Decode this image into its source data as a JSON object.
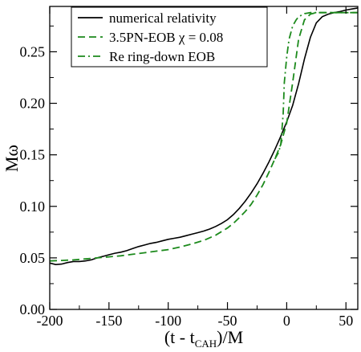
{
  "chart_data": {
    "type": "line",
    "xlabel": "(t - t_CAH)/M",
    "ylabel": "Mω",
    "xlim": [
      -200,
      60
    ],
    "ylim": [
      0,
      0.294
    ],
    "x_ticks": [
      -200,
      -150,
      -100,
      -50,
      0,
      50
    ],
    "x_tick_labels": [
      "-200",
      "-150",
      "-100",
      "-50",
      "0",
      "50"
    ],
    "y_ticks": [
      0,
      0.05,
      0.1,
      0.15,
      0.2,
      0.25
    ],
    "y_tick_labels": [
      "0.00",
      "0.05",
      "0.10",
      "0.15",
      "0.20",
      "0.25"
    ],
    "grid": false,
    "legend_position": "top-left",
    "series": [
      {
        "name": "numerical relativity",
        "color": "#000000",
        "dash": "solid",
        "x": [
          -200,
          -195,
          -190,
          -185,
          -180,
          -175,
          -170,
          -165,
          -160,
          -155,
          -150,
          -145,
          -140,
          -135,
          -130,
          -125,
          -120,
          -115,
          -110,
          -105,
          -100,
          -95,
          -90,
          -85,
          -80,
          -75,
          -70,
          -65,
          -60,
          -55,
          -50,
          -45,
          -40,
          -35,
          -30,
          -25,
          -20,
          -15,
          -10,
          -5,
          0,
          5,
          10,
          15,
          20,
          25,
          30,
          35,
          40,
          45,
          50,
          55,
          60
        ],
        "y": [
          0.045,
          0.0435,
          0.044,
          0.0455,
          0.0465,
          0.0465,
          0.047,
          0.048,
          0.05,
          0.0515,
          0.053,
          0.0545,
          0.0555,
          0.057,
          0.059,
          0.061,
          0.0625,
          0.064,
          0.065,
          0.0665,
          0.068,
          0.069,
          0.07,
          0.0715,
          0.073,
          0.0745,
          0.076,
          0.078,
          0.0805,
          0.0835,
          0.087,
          0.092,
          0.098,
          0.105,
          0.113,
          0.122,
          0.132,
          0.143,
          0.155,
          0.168,
          0.182,
          0.198,
          0.219,
          0.243,
          0.264,
          0.278,
          0.284,
          0.2865,
          0.288,
          0.289,
          0.2905,
          0.2915,
          0.2925
        ]
      },
      {
        "name": "3.5PN-EOB χ = 0.08",
        "color": "#1c8a1c",
        "dash": "dashed",
        "x": [
          -200,
          -190,
          -180,
          -170,
          -160,
          -150,
          -140,
          -130,
          -120,
          -110,
          -100,
          -90,
          -80,
          -70,
          -60,
          -50,
          -45,
          -40,
          -35,
          -30,
          -25,
          -20,
          -15,
          -10,
          -5,
          0,
          5,
          10,
          15,
          20,
          25,
          30,
          40,
          50,
          60
        ],
        "y": [
          0.047,
          0.0475,
          0.048,
          0.049,
          0.05,
          0.051,
          0.052,
          0.0535,
          0.055,
          0.0565,
          0.058,
          0.0605,
          0.0635,
          0.067,
          0.072,
          0.079,
          0.0835,
          0.089,
          0.095,
          0.102,
          0.111,
          0.121,
          0.133,
          0.146,
          0.16,
          0.181,
          0.22,
          0.262,
          0.281,
          0.2865,
          0.288,
          0.288,
          0.288,
          0.288,
          0.288
        ]
      },
      {
        "name": "Re ring-down EOB",
        "color": "#1c8a1c",
        "dash": "dashdot",
        "x": [
          -10,
          -7,
          -5,
          -3,
          -2,
          0,
          2,
          5,
          8,
          10,
          15,
          20,
          25,
          30,
          40,
          50,
          60
        ],
        "y": [
          0.146,
          0.152,
          0.16,
          0.19,
          0.22,
          0.245,
          0.262,
          0.275,
          0.281,
          0.284,
          0.287,
          0.288,
          0.288,
          0.288,
          0.288,
          0.288,
          0.288
        ]
      }
    ]
  }
}
